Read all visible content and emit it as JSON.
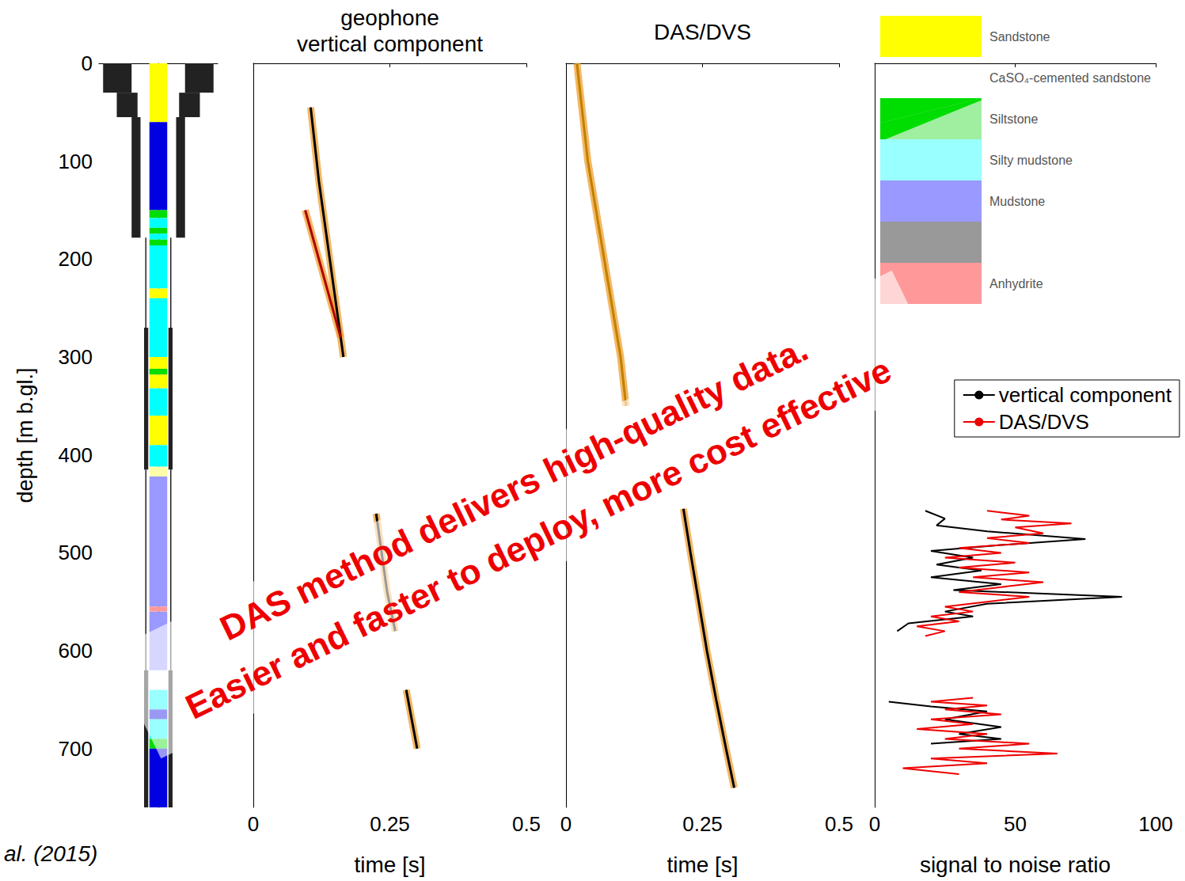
{
  "chart_data": [
    {
      "type": "lithology",
      "ylabel": "depth [m b.gl.]",
      "ylim": [
        0,
        760
      ],
      "yticks": [
        0,
        100,
        200,
        300,
        400,
        500,
        600,
        700
      ],
      "tick_labels": "y",
      "layers": [
        {
          "top": 0,
          "bottom": 60,
          "color": "#ffff00"
        },
        {
          "top": 60,
          "bottom": 150,
          "color": "#0000e0"
        },
        {
          "top": 150,
          "bottom": 158,
          "color": "#00dd00"
        },
        {
          "top": 158,
          "bottom": 168,
          "color": "#00ffff"
        },
        {
          "top": 168,
          "bottom": 174,
          "color": "#00dd00"
        },
        {
          "top": 174,
          "bottom": 180,
          "color": "#00ffff"
        },
        {
          "top": 180,
          "bottom": 186,
          "color": "#00dd00"
        },
        {
          "top": 186,
          "bottom": 230,
          "color": "#00ffff"
        },
        {
          "top": 230,
          "bottom": 240,
          "color": "#ffff00"
        },
        {
          "top": 240,
          "bottom": 300,
          "color": "#00ffff"
        },
        {
          "top": 300,
          "bottom": 312,
          "color": "#ffff00"
        },
        {
          "top": 312,
          "bottom": 318,
          "color": "#00dd00"
        },
        {
          "top": 318,
          "bottom": 332,
          "color": "#ffff00"
        },
        {
          "top": 332,
          "bottom": 360,
          "color": "#00ffff"
        },
        {
          "top": 360,
          "bottom": 390,
          "color": "#ffff00"
        },
        {
          "top": 390,
          "bottom": 412,
          "color": "#00ffff"
        },
        {
          "top": 412,
          "bottom": 422,
          "color": "#ffffaa"
        },
        {
          "top": 422,
          "bottom": 555,
          "color": "#9999ff"
        },
        {
          "top": 555,
          "bottom": 560,
          "color": "#ff9999"
        },
        {
          "top": 560,
          "bottom": 620,
          "color": "#9999ff"
        },
        {
          "top": 620,
          "bottom": 640,
          "color": "#ffffff"
        },
        {
          "top": 640,
          "bottom": 660,
          "color": "#00ffff"
        },
        {
          "top": 660,
          "bottom": 670,
          "color": "#0000e0"
        },
        {
          "top": 670,
          "bottom": 690,
          "color": "#00ffff"
        },
        {
          "top": 690,
          "bottom": 700,
          "color": "#00dd00"
        },
        {
          "top": 700,
          "bottom": 760,
          "color": "#0000e0"
        }
      ],
      "casing": [
        {
          "top": 0,
          "bottom": 30,
          "inner": 0.45,
          "outer": 0.93
        },
        {
          "top": 30,
          "bottom": 55,
          "inner": 0.35,
          "outer": 0.7
        },
        {
          "top": 55,
          "bottom": 178,
          "inner": 0.3,
          "outer": 0.45
        },
        {
          "top": 178,
          "bottom": 270,
          "inner": 0.2,
          "outer": 0.22
        },
        {
          "top": 270,
          "bottom": 415,
          "inner": 0.17,
          "outer": 0.24
        },
        {
          "top": 415,
          "bottom": 620,
          "inner": 0.2,
          "outer": 0.22
        },
        {
          "top": 620,
          "bottom": 760,
          "inner": 0.17,
          "outer": 0.24
        }
      ],
      "lithologies": [
        {
          "name": "Sandstone",
          "color": "#ffff00"
        },
        {
          "name": "CaSO₄-cemented sandstone",
          "color": "#ffffff"
        },
        {
          "name": "Siltstone",
          "colors": [
            "#00dd00",
            "#a0eea0"
          ]
        },
        {
          "name": "Silty mudstone",
          "color": "#99ffff"
        },
        {
          "name": "Mudstone",
          "color": "#9999ff"
        },
        {
          "name": null,
          "color": "#999999"
        },
        {
          "name": "Anhydrite",
          "color": "#ff9999"
        }
      ]
    },
    {
      "type": "line",
      "title": "geophone vertical component",
      "xlabel": "time [s]",
      "xlim": [
        0,
        0.5
      ],
      "xticks": [
        0,
        0.25,
        0.5
      ],
      "ylim": [
        0,
        760
      ],
      "tick_labels": "x",
      "series": [
        {
          "color": "#000000",
          "x": [
            0.105,
            0.112,
            0.12,
            0.13,
            0.14,
            0.15,
            0.16,
            0.165
          ],
          "values": [
            45,
            80,
            120,
            160,
            200,
            240,
            280,
            300
          ]
        },
        {
          "color": "#b00000",
          "x": [
            0.095,
            0.115,
            0.135,
            0.16
          ],
          "values": [
            150,
            190,
            230,
            280
          ]
        },
        {
          "color": "#000000",
          "x": [
            0.225,
            0.235,
            0.245,
            0.26
          ],
          "values": [
            460,
            500,
            540,
            580
          ]
        },
        {
          "color": "#000000",
          "x": [
            0.28,
            0.29,
            0.3
          ],
          "values": [
            640,
            670,
            700
          ]
        }
      ]
    },
    {
      "type": "line",
      "title": "DAS/DVS",
      "xlabel": "time [s]",
      "xlim": [
        0,
        0.5
      ],
      "xticks": [
        0,
        0.25,
        0.5
      ],
      "ylim": [
        0,
        760
      ],
      "tick_labels": "x",
      "series": [
        {
          "color": "#c08000",
          "x": [
            0.02,
            0.04,
            0.07,
            0.1,
            0.11
          ],
          "values": [
            0,
            100,
            200,
            300,
            350
          ]
        },
        {
          "color": "#000000",
          "x": [
            0.215,
            0.228,
            0.243,
            0.258,
            0.275,
            0.293,
            0.308
          ],
          "values": [
            455,
            500,
            550,
            600,
            650,
            700,
            740
          ]
        }
      ]
    },
    {
      "type": "line",
      "xlabel": "signal to noise ratio",
      "xlim": [
        0,
        100
      ],
      "xticks": [
        0,
        50,
        100
      ],
      "ylim": [
        0,
        760
      ],
      "tick_labels": "x",
      "legend": "upper right",
      "series": [
        {
          "name": "vertical component",
          "color": "#000000",
          "x": [
            18,
            25,
            22,
            40,
            75,
            45,
            20,
            35,
            22,
            38,
            20,
            45,
            28,
            88,
            40,
            25,
            35,
            12,
            8,
            null,
            5,
            20,
            40,
            25,
            45,
            30,
            45,
            20
          ],
          "values": [
            457,
            465,
            472,
            478,
            486,
            492,
            498,
            505,
            512,
            518,
            525,
            532,
            538,
            545,
            552,
            560,
            565,
            572,
            580,
            null,
            652,
            657,
            662,
            670,
            678,
            685,
            690,
            695
          ]
        },
        {
          "name": "DAS/DVS",
          "color": "#ee0000",
          "x": [
            40,
            55,
            45,
            70,
            50,
            60,
            40,
            55,
            30,
            45,
            25,
            50,
            30,
            55,
            35,
            60,
            45,
            30,
            55,
            40,
            25,
            35,
            20,
            30,
            15,
            25,
            18,
            null,
            35,
            20,
            40,
            25,
            45,
            20,
            35,
            15,
            40,
            25,
            55,
            30,
            65,
            20,
            40,
            10,
            30
          ],
          "values": [
            457,
            462,
            466,
            470,
            474,
            480,
            485,
            490,
            495,
            500,
            505,
            510,
            515,
            520,
            525,
            530,
            535,
            540,
            545,
            550,
            555,
            560,
            565,
            570,
            575,
            580,
            585,
            null,
            648,
            652,
            656,
            660,
            665,
            670,
            675,
            680,
            685,
            690,
            695,
            700,
            705,
            710,
            715,
            720,
            726
          ]
        }
      ]
    }
  ],
  "annotations": [
    "DAS method delivers high-quality data.",
    "Easier and faster to deploy, more cost effective"
  ],
  "source": "al. (2015)"
}
